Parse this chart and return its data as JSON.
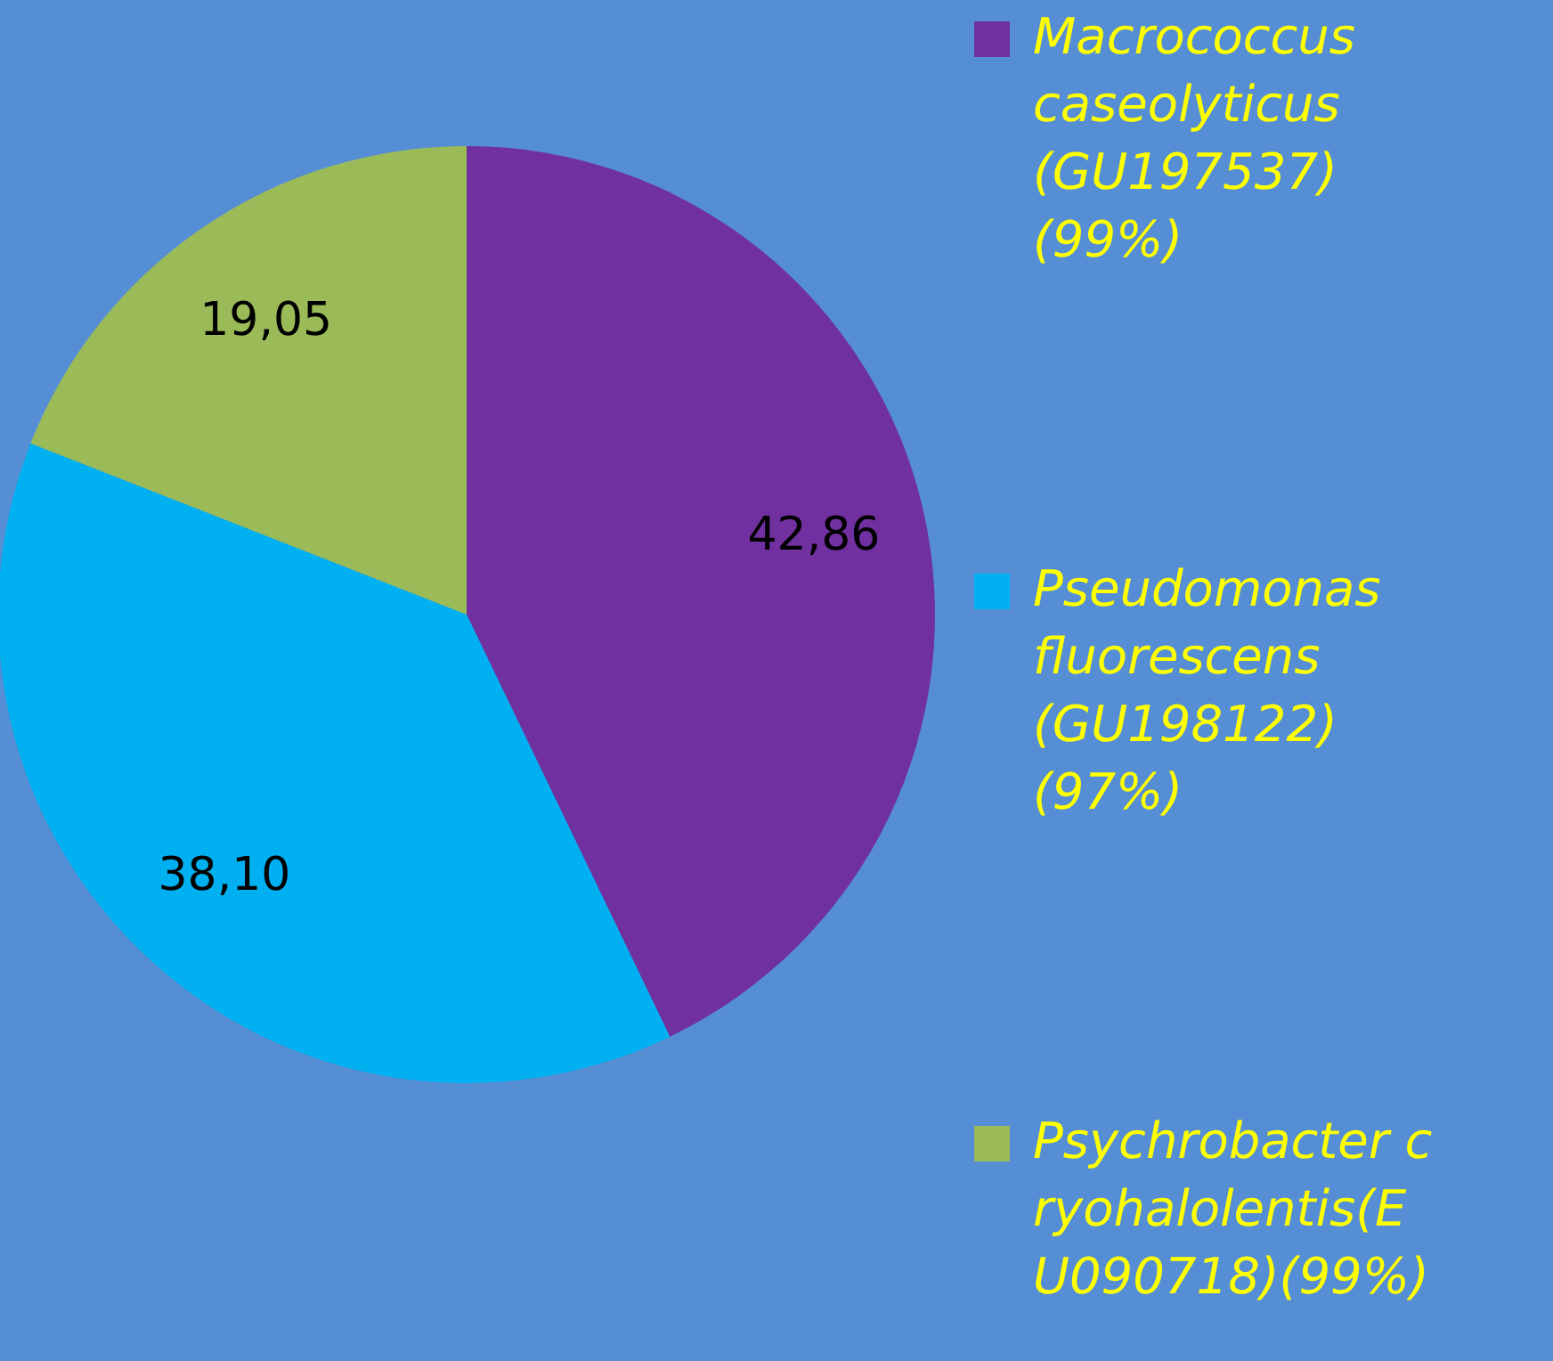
{
  "chart_data": {
    "type": "pie",
    "categories": [
      "Macrococcus caseolyticus (GU197537) (99%)",
      "Pseudomonas fluorescens (GU198122) (97%)",
      "Psychrobacter cryohalolentis(EU090718)(99%)"
    ],
    "values": [
      42.86,
      38.1,
      19.05
    ],
    "colors": [
      "#7030a0",
      "#00b0f0",
      "#9bbb59"
    ],
    "value_labels": [
      "42,86",
      "38,10",
      "19,05"
    ],
    "legend": "right"
  }
}
